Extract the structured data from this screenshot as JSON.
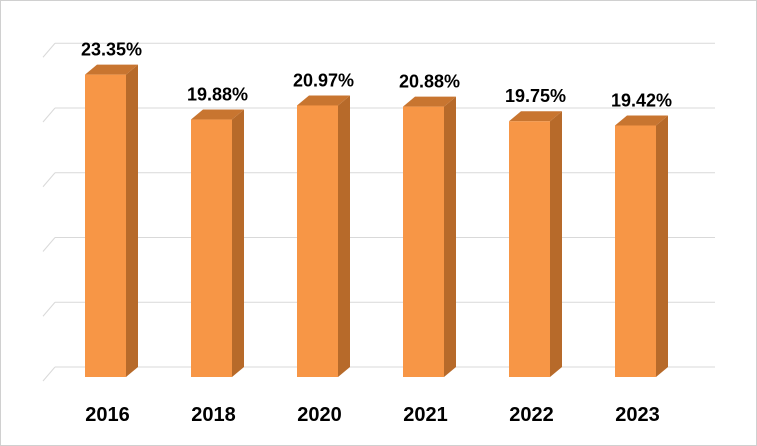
{
  "chart_data": {
    "type": "bar",
    "categories": [
      "2016",
      "2018",
      "2020",
      "2021",
      "2022",
      "2023"
    ],
    "values": [
      23.35,
      19.88,
      20.97,
      20.88,
      19.75,
      19.42
    ],
    "data_labels": [
      "23.35%",
      "19.88%",
      "20.97%",
      "20.88%",
      "19.75%",
      "19.42%"
    ],
    "title": "",
    "xlabel": "",
    "ylabel": "",
    "ylim": [
      0,
      25
    ],
    "grid": true,
    "legend": "none",
    "style": "3d-column"
  },
  "colors": {
    "bar_front": "#f79646",
    "bar_side": "#b76a2a",
    "bar_top": "#c87530",
    "gridline": "#d9d9d9"
  }
}
